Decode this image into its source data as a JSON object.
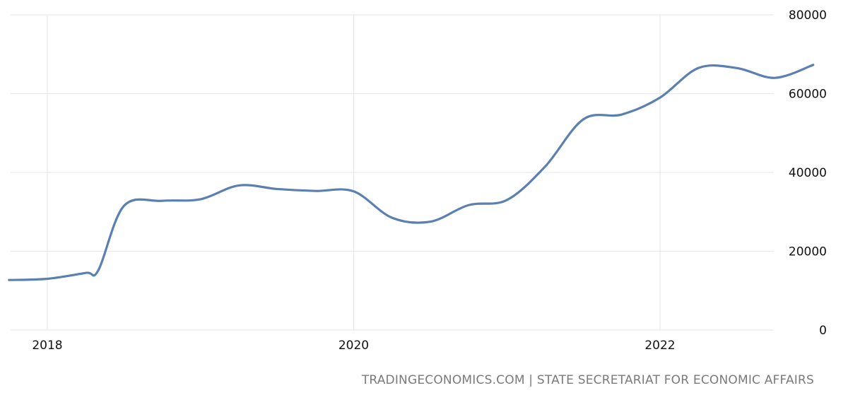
{
  "chart_data": {
    "type": "line",
    "title": "",
    "xlabel": "",
    "ylabel": "",
    "x_ticks": [
      "2018",
      "2020",
      "2022"
    ],
    "y_ticks": [
      "0",
      "20000",
      "40000",
      "60000",
      "80000"
    ],
    "ylim": [
      0,
      80000
    ],
    "grid": true,
    "y_axis_side": "right",
    "series": [
      {
        "color": "#5a7fb0",
        "points": [
          {
            "x": "2017-10",
            "y": 12700
          },
          {
            "x": "2018-01",
            "y": 13000
          },
          {
            "x": "2018-04",
            "y": 14500
          },
          {
            "x": "2018-05",
            "y": 15200
          },
          {
            "x": "2018-07",
            "y": 31500
          },
          {
            "x": "2018-10",
            "y": 32800
          },
          {
            "x": "2019-01",
            "y": 33200
          },
          {
            "x": "2019-04",
            "y": 36700
          },
          {
            "x": "2019-07",
            "y": 35800
          },
          {
            "x": "2019-10",
            "y": 35300
          },
          {
            "x": "2020-01",
            "y": 35200
          },
          {
            "x": "2020-04",
            "y": 28500
          },
          {
            "x": "2020-07",
            "y": 27500
          },
          {
            "x": "2020-10",
            "y": 31700
          },
          {
            "x": "2021-01",
            "y": 33000
          },
          {
            "x": "2021-04",
            "y": 41500
          },
          {
            "x": "2021-07",
            "y": 53500
          },
          {
            "x": "2021-10",
            "y": 54700
          },
          {
            "x": "2022-01",
            "y": 59000
          },
          {
            "x": "2022-04",
            "y": 66500
          },
          {
            "x": "2022-07",
            "y": 66500
          },
          {
            "x": "2022-10",
            "y": 64000
          },
          {
            "x": "2023-01",
            "y": 67300
          }
        ]
      }
    ]
  },
  "footer": {
    "source": "TRADINGECONOMICS.COM | STATE SECRETARIAT FOR ECONOMIC AFFAIRS"
  }
}
